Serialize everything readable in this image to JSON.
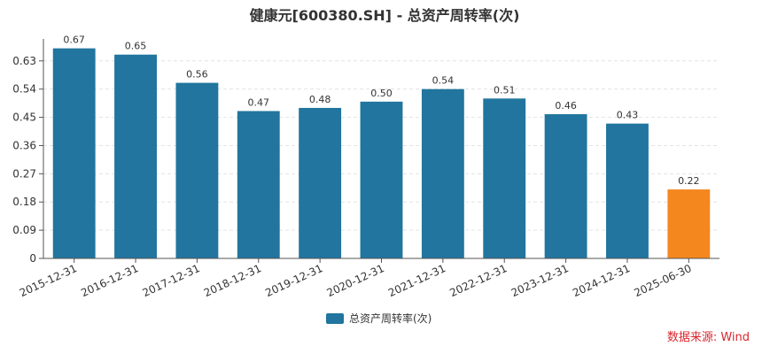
{
  "chart_data": {
    "type": "bar",
    "title": "健康元[600380.SH] - 总资产周转率(次)",
    "categories": [
      "2015-12-31",
      "2016-12-31",
      "2017-12-31",
      "2018-12-31",
      "2019-12-31",
      "2020-12-31",
      "2021-12-31",
      "2022-12-31",
      "2023-12-31",
      "2024-12-31",
      "2025-06-30"
    ],
    "series": [
      {
        "name": "总资产周转率(次)",
        "values": [
          0.67,
          0.65,
          0.56,
          0.47,
          0.48,
          0.5,
          0.54,
          0.51,
          0.46,
          0.43,
          0.22
        ],
        "data_labels": [
          "0.67",
          "0.65",
          "0.56",
          "0.47",
          "0.48",
          "0.50",
          "0.54",
          "0.51",
          "0.46",
          "0.43",
          "0.22"
        ]
      }
    ],
    "ylim": [
      0,
      0.7
    ],
    "yticks": [
      "0",
      "0.09",
      "0.18",
      "0.27",
      "0.36",
      "0.45",
      "0.54",
      "0.63"
    ],
    "grid": true,
    "legend_position": "bottom-center",
    "colors": {
      "bar": "#21759e",
      "highlight_bar": "#f5871f",
      "highlight_index": 10
    },
    "source": "数据来源: Wind"
  }
}
